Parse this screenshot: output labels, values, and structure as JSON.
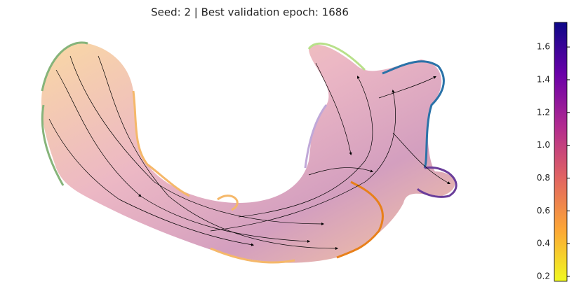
{
  "chart_data": {
    "type": "streamplot",
    "title": "Seed: 2 | Best validation epoch: 1686",
    "colormap": "plasma_r",
    "clim": [
      0.17,
      1.75
    ],
    "cticks": [
      0.2,
      0.4,
      0.6,
      0.8,
      {
        "value": 1,
        "label": "1.0"
      },
      1.2,
      1.4,
      1.6
    ]
  }
}
